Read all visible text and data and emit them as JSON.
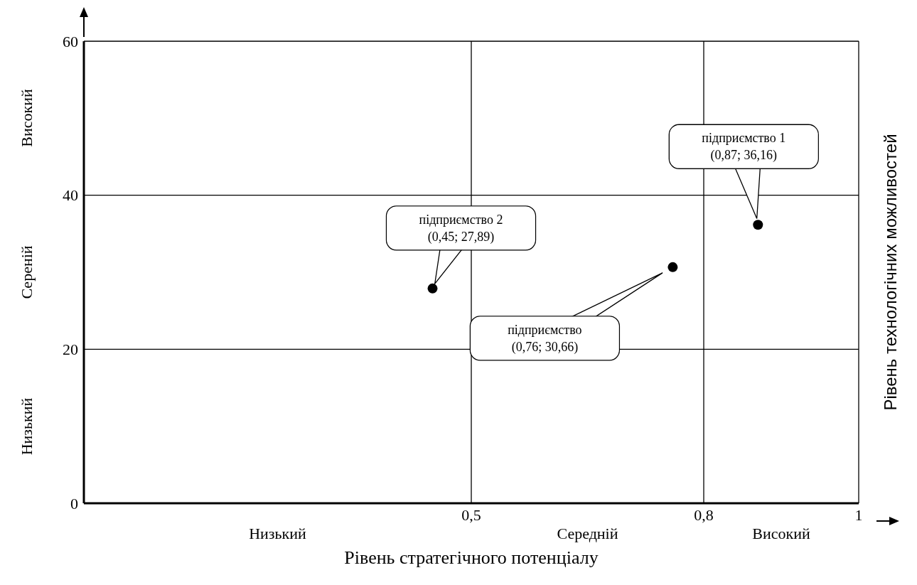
{
  "chart_data": {
    "type": "scatter",
    "xlabel": "Рівень стратегічного потенціалу",
    "ylabel": "Рівень технологічних можливостей",
    "xlim": [
      0,
      1
    ],
    "xticks": [
      {
        "value": 0,
        "label": null
      },
      {
        "value": 0.5,
        "label": "0,5"
      },
      {
        "value": 0.8,
        "label": "0,8"
      },
      1
    ],
    "ylim": [
      0,
      60
    ],
    "yticks": [
      0,
      20,
      40,
      60
    ],
    "grid": true,
    "marker": "circle",
    "annotations": [
      "Низький",
      "Середній",
      "Високий",
      "Низький",
      "Сереній",
      "Високий"
    ],
    "series": [
      {
        "name": "підприємство 1",
        "color": "#000000",
        "x": [
          0.87
        ],
        "values": [
          36.16
        ],
        "value_labels": [
          "(0,87; 36,16)"
        ]
      },
      {
        "name": "підприємство 2",
        "color": "#000000",
        "x": [
          0.45
        ],
        "values": [
          27.89
        ],
        "value_labels": [
          "(0,45; 27,89)"
        ]
      },
      {
        "name": "підприємство",
        "color": "#000000",
        "x": [
          0.76
        ],
        "values": [
          30.66
        ],
        "value_labels": [
          "(0,76; 30,66)"
        ]
      }
    ]
  }
}
